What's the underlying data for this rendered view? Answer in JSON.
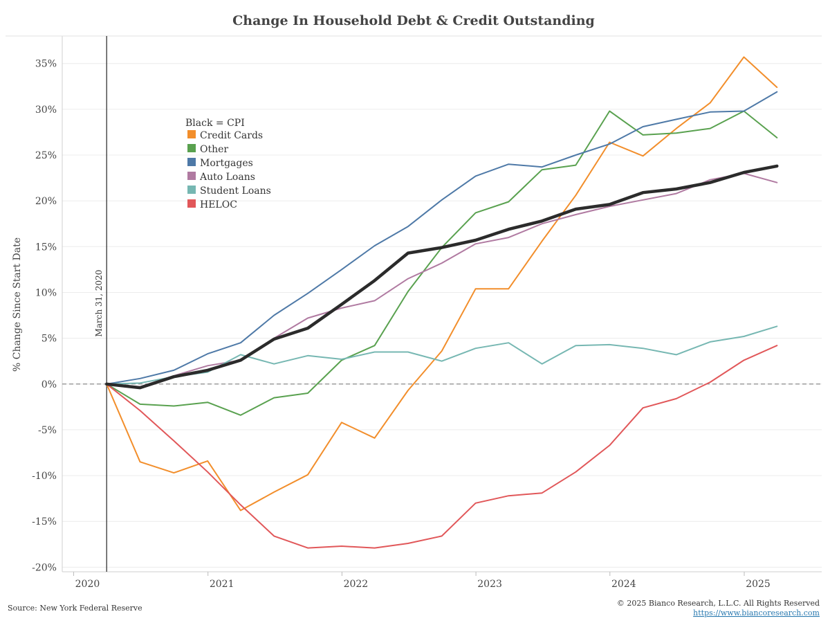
{
  "chart_data": {
    "type": "line",
    "title": "Change In Household Debt & Credit Outstanding",
    "ylabel": "% Change Since Start Date",
    "xlabel": "",
    "ylim": [
      -20.5,
      38
    ],
    "xlim": [
      "2019-12-01",
      "2025-07-31"
    ],
    "y_ticks": [
      35,
      30,
      25,
      20,
      15,
      10,
      5,
      0,
      -5,
      -10,
      -15,
      -20
    ],
    "y_tick_labels": [
      "35%",
      "30%",
      "25%",
      "20%",
      "15%",
      "10%",
      "5%",
      "0%",
      "-5%",
      "-10%",
      "-15%",
      "-20%"
    ],
    "x_ticks": [
      "2020-01-01",
      "2021-01-01",
      "2022-01-01",
      "2023-01-01",
      "2024-01-01",
      "2025-01-01"
    ],
    "x_tick_labels": [
      "2020",
      "2021",
      "2022",
      "2023",
      "2024",
      "2025"
    ],
    "grid": true,
    "zero_line": "dashed",
    "reference_line": {
      "date": "2020-03-31",
      "label": "March 31, 2020"
    },
    "legend": {
      "title": "Black = CPI",
      "placement": "upper-left",
      "entries": [
        "Credit Cards",
        "Other",
        "Mortgages",
        "Auto Loans",
        "Student Loans",
        "HELOC"
      ]
    },
    "x": [
      "2020-03-31",
      "2020-06-30",
      "2020-09-30",
      "2020-12-31",
      "2021-03-31",
      "2021-06-30",
      "2021-09-30",
      "2021-12-31",
      "2022-03-31",
      "2022-06-30",
      "2022-09-30",
      "2022-12-31",
      "2023-03-31",
      "2023-06-30",
      "2023-09-30",
      "2023-12-31",
      "2024-03-31",
      "2024-06-30",
      "2024-09-30",
      "2024-12-31",
      "2025-03-31"
    ],
    "series": [
      {
        "name": "Credit Cards",
        "color": "#f28e2b",
        "width": 2,
        "values": [
          0,
          -8.5,
          -9.7,
          -8.4,
          -13.8,
          -11.8,
          -9.9,
          -4.2,
          -5.9,
          -0.7,
          3.6,
          10.4,
          10.4,
          15.6,
          20.6,
          26.4,
          24.9,
          27.9,
          30.7,
          35.7,
          32.4
        ]
      },
      {
        "name": "Other",
        "color": "#59a14f",
        "width": 2,
        "values": [
          0,
          -2.2,
          -2.4,
          -2.0,
          -3.4,
          -1.5,
          -1.0,
          2.6,
          4.2,
          10.1,
          14.9,
          18.7,
          19.9,
          23.4,
          23.9,
          29.8,
          27.2,
          27.4,
          27.9,
          29.8,
          26.9
        ]
      },
      {
        "name": "Mortgages",
        "color": "#4e79a7",
        "width": 2,
        "values": [
          0,
          0.6,
          1.5,
          3.3,
          4.5,
          7.5,
          9.9,
          12.5,
          15.1,
          17.2,
          20.1,
          22.7,
          24.0,
          23.7,
          25.0,
          26.2,
          28.1,
          28.9,
          29.7,
          29.8,
          31.9
        ]
      },
      {
        "name": "Auto Loans",
        "color": "#b07aa1",
        "width": 2,
        "values": [
          0,
          -0.3,
          0.9,
          2.0,
          2.6,
          5.0,
          7.2,
          8.3,
          9.1,
          11.5,
          13.2,
          15.3,
          16.0,
          17.5,
          18.5,
          19.4,
          20.1,
          20.8,
          22.3,
          23.0,
          22.0
        ]
      },
      {
        "name": "Student Loans",
        "color": "#76b7b2",
        "width": 2,
        "values": [
          0,
          0.1,
          0.8,
          1.3,
          3.2,
          2.2,
          3.1,
          2.7,
          3.5,
          3.5,
          2.5,
          3.9,
          4.5,
          2.2,
          4.2,
          4.3,
          3.9,
          3.2,
          4.6,
          5.2,
          6.3
        ]
      },
      {
        "name": "HELOC",
        "color": "#e15759",
        "width": 2,
        "values": [
          0,
          -2.9,
          -6.2,
          -9.6,
          -13.2,
          -16.6,
          -17.9,
          -17.7,
          -17.9,
          -17.4,
          -16.6,
          -13.0,
          -12.2,
          -11.9,
          -9.6,
          -6.7,
          -2.6,
          -1.6,
          0.2,
          2.6,
          4.2
        ]
      },
      {
        "name": "CPI",
        "color": "#2b2b2b",
        "width": 4.5,
        "values": [
          0,
          -0.4,
          0.8,
          1.5,
          2.6,
          4.9,
          6.1,
          8.7,
          11.3,
          14.3,
          14.9,
          15.7,
          16.9,
          17.8,
          19.1,
          19.6,
          20.9,
          21.3,
          22.0,
          23.1,
          23.8
        ]
      }
    ]
  },
  "footer": {
    "source": "Source: New York Federal Reserve",
    "copyright": "© 2025 Bianco Research, L.L.C. All Rights Reserved",
    "link": "https://www.biancoresearch.com"
  }
}
